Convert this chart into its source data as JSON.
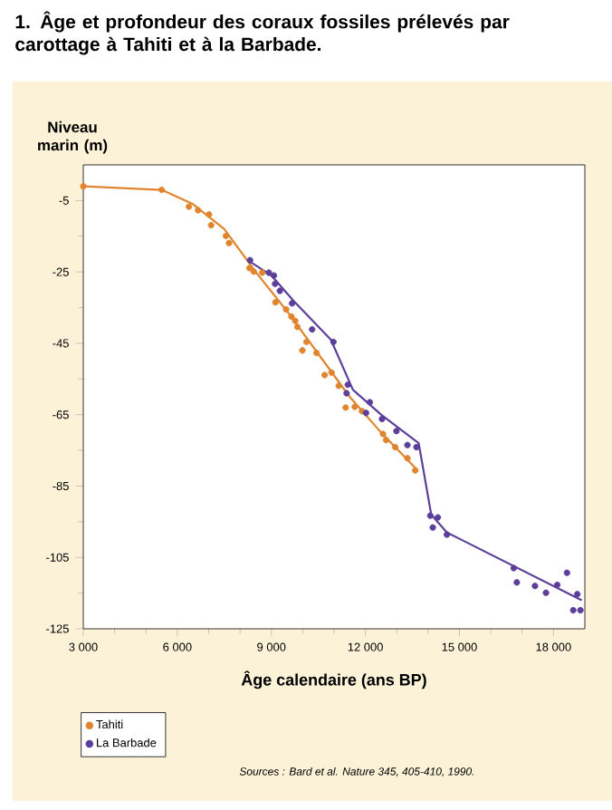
{
  "chart_data": {
    "type": "scatter",
    "title": "1. Âge et profondeur des coraux fossiles prélevés par carottage à Tahiti et à la Barbade.",
    "xlabel": "Âge calendaire (ans BP)",
    "ylabel": "Niveau marin (m)",
    "xlim": [
      3000,
      19000
    ],
    "ylim": [
      -125,
      5
    ],
    "xticks": [
      {
        "value": 3000,
        "label": "3 000"
      },
      {
        "value": 6000,
        "label": "6 000"
      },
      {
        "value": 9000,
        "label": "9 000"
      },
      {
        "value": 12000,
        "label": "12 000"
      },
      {
        "value": 15000,
        "label": "15 000"
      },
      {
        "value": 18000,
        "label": "18 000"
      }
    ],
    "yticks": [
      -5,
      -25,
      -45,
      -65,
      -85,
      -105,
      -125
    ],
    "grid": false,
    "legend": "bottom left",
    "annotations": [
      "Sources : Bard et al. Nature 345, 405-410, 1990."
    ],
    "series": [
      {
        "name": "Tahiti",
        "marker": "circle",
        "color": "#e0852e",
        "x": [
          3000,
          5500,
          6370,
          6660,
          7010,
          7080,
          7550,
          7650,
          8300,
          8440,
          8710,
          9130,
          9470,
          9640,
          9760,
          9830,
          10120,
          9990,
          10440,
          10700,
          10920,
          11150,
          11370,
          11660,
          11890,
          12560,
          12660,
          12950,
          13340,
          13590
        ],
        "values": [
          -1,
          -2,
          -6.7,
          -7.7,
          -8.9,
          -11.9,
          -14.9,
          -16.9,
          -23.9,
          -24.9,
          -25.2,
          -33.5,
          -35.5,
          -37.5,
          -38.7,
          -40.4,
          -44.6,
          -47,
          -47.7,
          -53.9,
          -53.2,
          -56.9,
          -63,
          -62.8,
          -64,
          -70.4,
          -72.1,
          -74.1,
          -77.2,
          -80.6
        ]
      },
      {
        "name": "La Barbade",
        "marker": "circle",
        "color": "#5b3f9a",
        "x": [
          8320,
          8920,
          9080,
          9120,
          9270,
          9660,
          10300,
          10980,
          11440,
          11400,
          12140,
          12020,
          12530,
          12990,
          13340,
          13630,
          14070,
          14310,
          14150,
          14600,
          16730,
          16830,
          17410,
          17760,
          18120,
          18430,
          18760,
          18630,
          18860
        ],
        "values": [
          -21.7,
          -25.2,
          -26,
          -28.3,
          -30.3,
          -33.8,
          -41.1,
          -44.6,
          -56.6,
          -59,
          -61.5,
          -64.5,
          -66.2,
          -69.6,
          -73.5,
          -74.1,
          -93.3,
          -93.8,
          -96.6,
          -98.6,
          -108,
          -112,
          -113,
          -114.9,
          -112.7,
          -109.3,
          -115.3,
          -119.8,
          -119.8
        ]
      },
      {
        "type": "line",
        "marker": "none",
        "color": "#e0852e",
        "x": [
          3000,
          5500,
          6500,
          7500,
          8500,
          9500,
          10500,
          11500,
          12500,
          13600
        ],
        "values": [
          -1,
          -2,
          -6,
          -13,
          -25,
          -36,
          -48,
          -60,
          -70,
          -80
        ]
      },
      {
        "type": "line",
        "marker": "none",
        "color": "#5b3f9a",
        "x": [
          8300,
          9000,
          9700,
          10900,
          11600,
          12500,
          13700,
          14100,
          14600,
          18900
        ],
        "values": [
          -22,
          -26,
          -33,
          -44,
          -58,
          -65,
          -73,
          -93,
          -98,
          -117
        ]
      }
    ]
  }
}
